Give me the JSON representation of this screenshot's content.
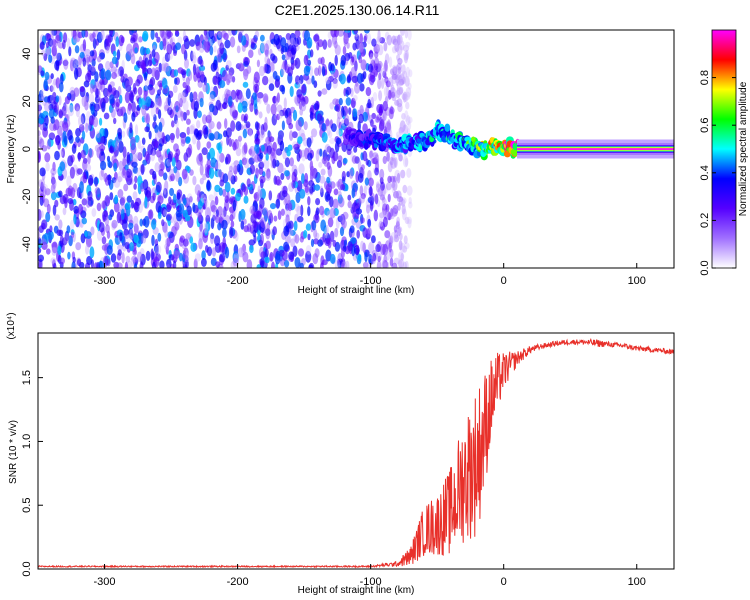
{
  "figure_title": "C2E1.2025.130.06.14.R11",
  "chart_data": [
    {
      "type": "heatmap",
      "title": "C2E1.2025.130.06.14.R11",
      "xlabel": "Height of straight line (km)",
      "ylabel": "Frequency (Hz)",
      "xlim": [
        -350,
        128
      ],
      "ylim": [
        -50,
        50
      ],
      "xticks": [
        "-300",
        "-200",
        "-100",
        "0",
        "100"
      ],
      "yticks": [
        "-40",
        "-20",
        "0",
        "20",
        "40"
      ],
      "colorbar": {
        "label": "Normalized spectral amplitude",
        "range": [
          0.0,
          1.0
        ],
        "ticks": [
          "0.0",
          "0.2",
          "0.4",
          "0.6",
          "0.8"
        ],
        "colors": [
          "#ffffff",
          "#a070ff",
          "#5500ff",
          "#0000ff",
          "#00ffff",
          "#00ff00",
          "#ffff00",
          "#ff0000",
          "#ff00ff"
        ]
      },
      "ridge": {
        "description_x": [
          -120,
          -100,
          -80,
          -60,
          -50,
          -40,
          -30,
          -20,
          -10,
          0,
          10,
          50,
          100,
          128
        ],
        "frequency": [
          5,
          4,
          2,
          3,
          8,
          5,
          2,
          0,
          1,
          1,
          0,
          0,
          0,
          0
        ],
        "amplitude": [
          0.3,
          0.4,
          0.45,
          0.5,
          0.55,
          0.55,
          0.6,
          0.7,
          0.8,
          0.9,
          1.0,
          1.0,
          1.0,
          1.0
        ]
      },
      "noise_region_x": [
        -350,
        -85
      ],
      "grid": false
    },
    {
      "type": "line",
      "xlabel": "Height of straight line (km)",
      "ylabel": "SNR (10 * v/v)",
      "y_multiplier": "(x10⁴)",
      "xlim": [
        -350,
        128
      ],
      "ylim": [
        0,
        1.85
      ],
      "xticks": [
        "-300",
        "-200",
        "-100",
        "0",
        "100"
      ],
      "yticks": [
        "0.0",
        "0.5",
        "1.0",
        "1.5"
      ],
      "color": "#e8302a",
      "series": [
        {
          "x": [
            -350,
            -300,
            -250,
            -200,
            -150,
            -100,
            -80,
            -70,
            -60,
            -50,
            -40,
            -30,
            -20,
            -15,
            -10,
            -5,
            0,
            10,
            20,
            30,
            40,
            50,
            60,
            70,
            80,
            90,
            100,
            110,
            120,
            128
          ],
          "y": [
            0.02,
            0.02,
            0.02,
            0.02,
            0.02,
            0.02,
            0.04,
            0.1,
            0.3,
            0.35,
            0.45,
            0.7,
            0.85,
            1.05,
            1.3,
            1.45,
            1.55,
            1.65,
            1.72,
            1.75,
            1.77,
            1.78,
            1.78,
            1.77,
            1.76,
            1.75,
            1.73,
            1.72,
            1.71,
            1.7
          ],
          "noise_amplitude": [
            0.005,
            0.005,
            0.005,
            0.005,
            0.005,
            0.006,
            0.02,
            0.08,
            0.2,
            0.25,
            0.35,
            0.5,
            0.6,
            0.5,
            0.35,
            0.25,
            0.15,
            0.06,
            0.03,
            0.02,
            0.02,
            0.02,
            0.02,
            0.03,
            0.02,
            0.02,
            0.02,
            0.02,
            0.02,
            0.02
          ]
        }
      ]
    }
  ]
}
